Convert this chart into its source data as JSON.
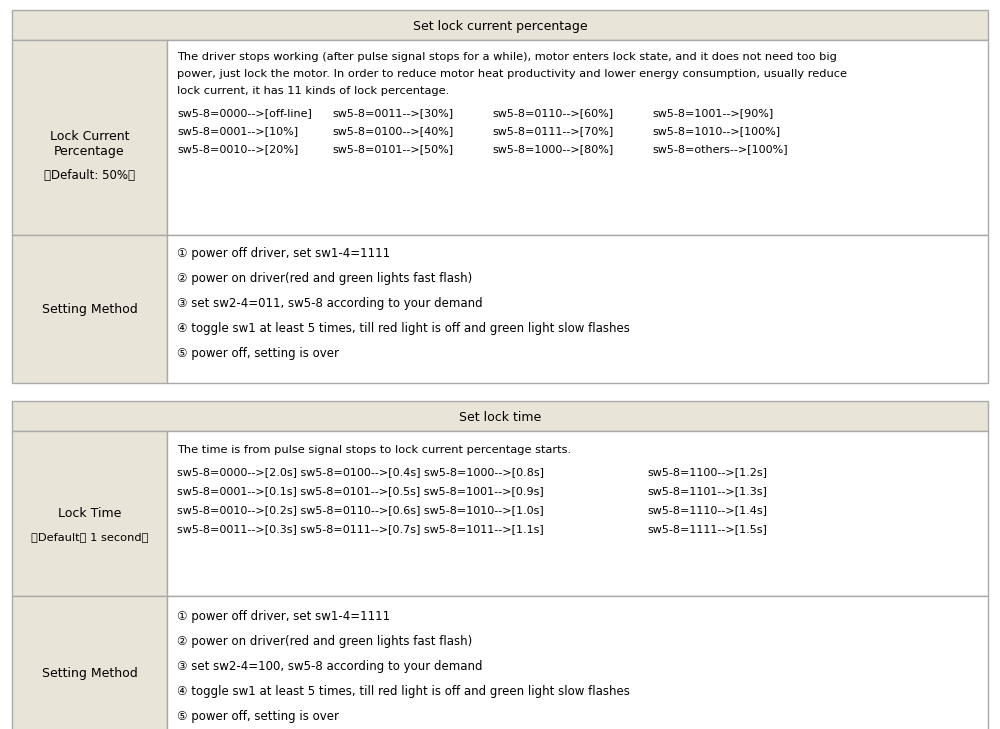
{
  "bg_color": "#ffffff",
  "header_bg": "#e8e4d8",
  "cell_left_bg": "#e8e4d8",
  "cell_right_bg": "#ffffff",
  "border_color": "#aaaaaa",
  "fig_width": 10.0,
  "fig_height": 7.29,
  "dpi": 100,
  "section1_header": "Set lock current percentage",
  "section1_row1_left_lines": [
    "Lock Current",
    "Percentage",
    "（Default: 50%）"
  ],
  "section1_row1_right_desc": [
    "The driver stops working (after pulse signal stops for a while), motor enters lock state, and it does not need too big",
    "power, just lock the motor. In order to reduce motor heat productivity and lower energy consumption, usually reduce",
    "lock current, it has 11 kinds of lock percentage."
  ],
  "section1_row1_right_table": [
    [
      "sw5-8=0000-->[off-line]",
      "sw5-8=0011-->[30%]",
      "sw5-8=0110-->[60%]",
      "sw5-8=1001-->[90%]"
    ],
    [
      "sw5-8=0001-->[10%]",
      "sw5-8=0100-->[40%]",
      "sw5-8=0111-->[70%]",
      "sw5-8=1010-->[100%]"
    ],
    [
      "sw5-8=0010-->[20%]",
      "sw5-8=0101-->[50%]",
      "sw5-8=1000-->[80%]",
      "sw5-8=others-->[100%]"
    ]
  ],
  "section1_row2_left": "Setting Method",
  "section1_row2_right": [
    "① power off driver, set sw1-4=1111",
    "② power on driver(red and green lights fast flash)",
    "③ set sw2-4=011, sw5-8 according to your demand",
    "④ toggle sw1 at least 5 times, till red light is off and green light slow flashes",
    "⑤ power off, setting is over"
  ],
  "section2_header": "Set lock time",
  "section2_row1_left_lines": [
    "Lock Time",
    "（Default： 1 second）"
  ],
  "section2_row1_right_desc": "The time is from pulse signal stops to lock current percentage starts.",
  "section2_row1_right_table": [
    [
      "sw5-8=0000-->[2.0s] sw5-8=0100-->[0.4s] sw5-8=1000-->[0.8s]",
      "sw5-8=1100-->[1.2s]"
    ],
    [
      "sw5-8=0001-->[0.1s] sw5-8=0101-->[0.5s] sw5-8=1001-->[0.9s]",
      "sw5-8=1101-->[1.3s]"
    ],
    [
      "sw5-8=0010-->[0.2s] sw5-8=0110-->[0.6s] sw5-8=1010-->[1.0s]",
      "sw5-8=1110-->[1.4s]"
    ],
    [
      "sw5-8=0011-->[0.3s] sw5-8=0111-->[0.7s] sw5-8=1011-->[1.1s]",
      "sw5-8=1111-->[1.5s]"
    ]
  ],
  "section2_row2_left": "Setting Method",
  "section2_row2_right": [
    "① power off driver, set sw1-4=1111",
    "② power on driver(red and green lights fast flash)",
    "③ set sw2-4=100, sw5-8 according to your demand",
    "④ toggle sw1 at least 5 times, till red light is off and green light slow flashes",
    "⑤ power off, setting is over"
  ],
  "col1_table1": [
    0,
    165,
    320,
    490
  ],
  "col1_table2_split": 470
}
